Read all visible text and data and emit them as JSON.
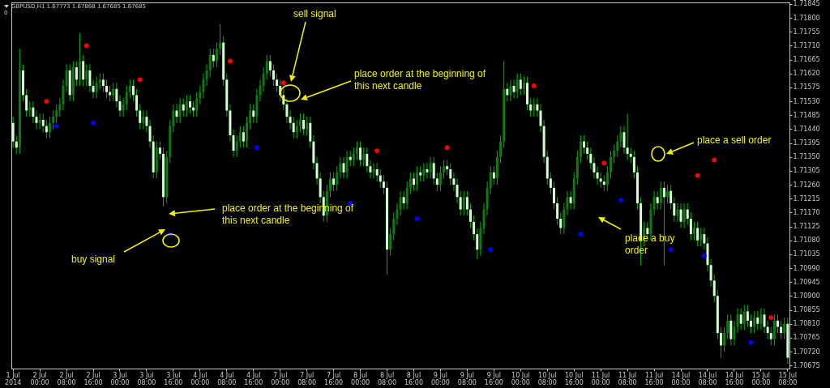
{
  "chart_data": {
    "type": "candlestick",
    "title": "GBPUSD,H1  1.67773 1.67868 1.67685 1.67685",
    "subtitle": "0",
    "categories": [
      "1 Jul 2014",
      null,
      null,
      null,
      null,
      null,
      null,
      null,
      "2 Jul 00:00",
      null,
      null,
      null,
      null,
      null,
      null,
      null,
      "2 Jul 08:00",
      null,
      null,
      null,
      null,
      null,
      null,
      null,
      "2 Jul 16:00",
      null,
      null,
      null,
      null,
      null,
      null,
      null,
      "3 Jul 00:00",
      null,
      null,
      null,
      null,
      null,
      null,
      null,
      "3 Jul 08:00",
      null,
      null,
      null,
      null,
      null,
      null,
      null,
      "3 Jul 16:00",
      null,
      null,
      null,
      null,
      null,
      null,
      null,
      "4 Jul 00:00",
      null,
      null,
      null,
      null,
      null,
      null,
      null,
      "4 Jul 08:00",
      null,
      null,
      null,
      null,
      null,
      null,
      null,
      "4 Jul 16:00",
      null,
      null,
      null,
      null,
      null,
      null,
      null,
      "7 Jul 00:00",
      null,
      null,
      null,
      null,
      null,
      null,
      null,
      "7 Jul 08:00",
      null,
      null,
      null,
      null,
      null,
      null,
      null,
      "7 Jul 16:00",
      null,
      null,
      null,
      null,
      null,
      null,
      null,
      "8 Jul 00:00",
      null,
      null,
      null,
      null,
      null,
      null,
      null,
      "8 Jul 08:00",
      null,
      null,
      null,
      null,
      null,
      null,
      null,
      "8 Jul 16:00",
      null,
      null,
      null,
      null,
      null,
      null,
      null,
      "9 Jul 00:00",
      null,
      null,
      null,
      null,
      null,
      null,
      null,
      "9 Jul 08:00",
      null,
      null,
      null,
      null,
      null,
      null,
      null,
      "9 Jul 16:00",
      null,
      null,
      null,
      null,
      null,
      null,
      null,
      "10 Jul 00:00",
      null,
      null,
      null,
      null,
      null,
      null,
      null,
      "10 Jul 08:00",
      null,
      null,
      null,
      null,
      null,
      null,
      null,
      "10 Jul 16:00",
      null,
      null,
      null,
      null,
      null,
      null,
      null,
      "11 Jul 00:00",
      null,
      null,
      null,
      null,
      null,
      null,
      null,
      "11 Jul 08:00",
      null,
      null,
      null,
      null,
      null,
      null,
      null,
      "11 Jul 16:00",
      null,
      null,
      null,
      null,
      null,
      null,
      null,
      "14 Jul 00:00",
      null,
      null,
      null,
      null,
      null,
      null,
      null,
      "14 Jul 08:00",
      null,
      null,
      null,
      null,
      null,
      null,
      null,
      "14 Jul 16:00",
      null,
      null,
      null,
      null,
      null,
      null,
      null,
      "15 Jul 00:00",
      null,
      null,
      null,
      null,
      null,
      null,
      null,
      "15 Jul 08:00"
    ],
    "ohlc": [
      [
        1.7146,
        1.7148,
        1.7138,
        1.714
      ],
      [
        1.714,
        1.7142,
        1.7136,
        1.7138
      ],
      [
        1.7138,
        1.717,
        1.7136,
        1.7163
      ],
      [
        1.7163,
        1.7165,
        1.7153,
        1.7155
      ],
      [
        1.7155,
        1.7157,
        1.7148,
        1.715
      ],
      [
        1.715,
        1.7153,
        1.7148,
        1.7151
      ],
      [
        1.7151,
        1.7153,
        1.7146,
        1.7148
      ],
      [
        1.7148,
        1.715,
        1.7144,
        1.7146
      ],
      [
        1.7146,
        1.7149,
        1.7144,
        1.7147
      ],
      [
        1.7147,
        1.7149,
        1.7143,
        1.7145
      ],
      [
        1.7145,
        1.7147,
        1.7141,
        1.7143
      ],
      [
        1.7143,
        1.7148,
        1.7141,
        1.7146
      ],
      [
        1.7146,
        1.715,
        1.7144,
        1.7148
      ],
      [
        1.7148,
        1.7152,
        1.7146,
        1.715
      ],
      [
        1.715,
        1.7154,
        1.7148,
        1.7152
      ],
      [
        1.7152,
        1.716,
        1.715,
        1.7158
      ],
      [
        1.7158,
        1.7165,
        1.7156,
        1.7163
      ],
      [
        1.7163,
        1.7165,
        1.7153,
        1.7155
      ],
      [
        1.7155,
        1.7166,
        1.7153,
        1.7164
      ],
      [
        1.7164,
        1.7166,
        1.7158,
        1.716
      ],
      [
        1.716,
        1.7175,
        1.7158,
        1.7166
      ],
      [
        1.7166,
        1.7168,
        1.7158,
        1.716
      ],
      [
        1.716,
        1.7165,
        1.7158,
        1.7163
      ],
      [
        1.7163,
        1.7165,
        1.7156,
        1.7158
      ],
      [
        1.7158,
        1.716,
        1.7154,
        1.7156
      ],
      [
        1.7156,
        1.7161,
        1.7154,
        1.7159
      ],
      [
        1.7159,
        1.7162,
        1.7157,
        1.716
      ],
      [
        1.716,
        1.7162,
        1.7156,
        1.7158
      ],
      [
        1.7158,
        1.716,
        1.7154,
        1.7156
      ],
      [
        1.7156,
        1.7158,
        1.7153,
        1.7155
      ],
      [
        1.7155,
        1.7159,
        1.7153,
        1.7157
      ],
      [
        1.7157,
        1.7159,
        1.7151,
        1.7153
      ],
      [
        1.7153,
        1.7155,
        1.7148,
        1.715
      ],
      [
        1.715,
        1.7154,
        1.7148,
        1.7152
      ],
      [
        1.7152,
        1.7158,
        1.715,
        1.7156
      ],
      [
        1.7156,
        1.716,
        1.7154,
        1.7158
      ],
      [
        1.7158,
        1.716,
        1.7153,
        1.7155
      ],
      [
        1.7155,
        1.7157,
        1.7148,
        1.715
      ],
      [
        1.715,
        1.7152,
        1.7144,
        1.7146
      ],
      [
        1.7146,
        1.715,
        1.7144,
        1.7148
      ],
      [
        1.7148,
        1.715,
        1.7143,
        1.7145
      ],
      [
        1.7145,
        1.7147,
        1.7138,
        1.714
      ],
      [
        1.714,
        1.7142,
        1.7128,
        1.713
      ],
      [
        1.713,
        1.714,
        1.7128,
        1.7138
      ],
      [
        1.7138,
        1.714,
        1.7134,
        1.7136
      ],
      [
        1.7136,
        1.7138,
        1.7119,
        1.7122
      ],
      [
        1.7122,
        1.7137,
        1.712,
        1.7135
      ],
      [
        1.7135,
        1.7147,
        1.7133,
        1.7145
      ],
      [
        1.7145,
        1.7152,
        1.7143,
        1.715
      ],
      [
        1.715,
        1.7152,
        1.7146,
        1.7148
      ],
      [
        1.7148,
        1.7154,
        1.7146,
        1.7152
      ],
      [
        1.7152,
        1.7154,
        1.7148,
        1.715
      ],
      [
        1.715,
        1.7155,
        1.7148,
        1.7153
      ],
      [
        1.7153,
        1.7155,
        1.7149,
        1.7151
      ],
      [
        1.7151,
        1.7153,
        1.7148,
        1.715
      ],
      [
        1.715,
        1.7156,
        1.7148,
        1.7154
      ],
      [
        1.7154,
        1.7158,
        1.7152,
        1.7156
      ],
      [
        1.7156,
        1.7162,
        1.7154,
        1.716
      ],
      [
        1.716,
        1.7165,
        1.7158,
        1.7163
      ],
      [
        1.7163,
        1.717,
        1.7161,
        1.7168
      ],
      [
        1.7168,
        1.717,
        1.7164,
        1.7166
      ],
      [
        1.7166,
        1.7172,
        1.7164,
        1.717
      ],
      [
        1.717,
        1.7178,
        1.7168,
        1.7172
      ],
      [
        1.7172,
        1.7174,
        1.7158,
        1.716
      ],
      [
        1.716,
        1.7162,
        1.7148,
        1.715
      ],
      [
        1.715,
        1.7152,
        1.714,
        1.7142
      ],
      [
        1.7142,
        1.7144,
        1.7135,
        1.7137
      ],
      [
        1.7137,
        1.7142,
        1.7135,
        1.714
      ],
      [
        1.714,
        1.7145,
        1.7138,
        1.7143
      ],
      [
        1.7143,
        1.7145,
        1.7138,
        1.714
      ],
      [
        1.714,
        1.7148,
        1.7138,
        1.7146
      ],
      [
        1.7146,
        1.7152,
        1.7144,
        1.715
      ],
      [
        1.715,
        1.7152,
        1.7146,
        1.7148
      ],
      [
        1.7148,
        1.7157,
        1.7146,
        1.7155
      ],
      [
        1.7155,
        1.716,
        1.7153,
        1.7158
      ],
      [
        1.7158,
        1.7164,
        1.7156,
        1.7162
      ],
      [
        1.7162,
        1.7168,
        1.716,
        1.7166
      ],
      [
        1.7166,
        1.7168,
        1.7161,
        1.7163
      ],
      [
        1.7163,
        1.7165,
        1.7158,
        1.716
      ],
      [
        1.716,
        1.7162,
        1.7156,
        1.7158
      ],
      [
        1.7158,
        1.716,
        1.7153,
        1.7155
      ],
      [
        1.7155,
        1.7157,
        1.715,
        1.7152
      ],
      [
        1.7152,
        1.7154,
        1.7146,
        1.7148
      ],
      [
        1.7148,
        1.715,
        1.7144,
        1.7146
      ],
      [
        1.7146,
        1.7148,
        1.7141,
        1.7143
      ],
      [
        1.7143,
        1.7147,
        1.7141,
        1.7145
      ],
      [
        1.7145,
        1.7149,
        1.7143,
        1.7147
      ],
      [
        1.7147,
        1.7149,
        1.7142,
        1.7144
      ],
      [
        1.7144,
        1.7148,
        1.7142,
        1.7146
      ],
      [
        1.7146,
        1.7148,
        1.7138,
        1.714
      ],
      [
        1.714,
        1.7142,
        1.7131,
        1.7133
      ],
      [
        1.7133,
        1.7135,
        1.7126,
        1.7128
      ],
      [
        1.7128,
        1.713,
        1.712,
        1.7122
      ],
      [
        1.7122,
        1.7124,
        1.7114,
        1.7116
      ],
      [
        1.7116,
        1.7126,
        1.7114,
        1.7124
      ],
      [
        1.7124,
        1.713,
        1.7122,
        1.7128
      ],
      [
        1.7128,
        1.713,
        1.7124,
        1.7126
      ],
      [
        1.7126,
        1.7132,
        1.7124,
        1.713
      ],
      [
        1.713,
        1.7135,
        1.7128,
        1.7133
      ],
      [
        1.7133,
        1.7135,
        1.7128,
        1.713
      ],
      [
        1.713,
        1.7137,
        1.7128,
        1.7135
      ],
      [
        1.7135,
        1.7137,
        1.7132,
        1.7134
      ],
      [
        1.7134,
        1.7138,
        1.7132,
        1.7136
      ],
      [
        1.7136,
        1.714,
        1.7134,
        1.7138
      ],
      [
        1.7138,
        1.714,
        1.7132,
        1.7134
      ],
      [
        1.7134,
        1.7138,
        1.7132,
        1.7136
      ],
      [
        1.7136,
        1.7138,
        1.713,
        1.7132
      ],
      [
        1.7132,
        1.7134,
        1.7128,
        1.713
      ],
      [
        1.713,
        1.7133,
        1.7128,
        1.7131
      ],
      [
        1.7131,
        1.7133,
        1.7127,
        1.7129
      ],
      [
        1.7129,
        1.7131,
        1.7125,
        1.7127
      ],
      [
        1.7127,
        1.7129,
        1.7123,
        1.7125
      ],
      [
        1.7125,
        1.7127,
        1.7097,
        1.7105
      ],
      [
        1.7105,
        1.7112,
        1.7103,
        1.711
      ],
      [
        1.711,
        1.7117,
        1.7108,
        1.7115
      ],
      [
        1.7115,
        1.712,
        1.7113,
        1.7118
      ],
      [
        1.7118,
        1.7124,
        1.7116,
        1.7122
      ],
      [
        1.7122,
        1.7124,
        1.7118,
        1.712
      ],
      [
        1.712,
        1.7127,
        1.7118,
        1.7125
      ],
      [
        1.7125,
        1.713,
        1.7123,
        1.7128
      ],
      [
        1.7128,
        1.713,
        1.7124,
        1.7126
      ],
      [
        1.7126,
        1.7132,
        1.7124,
        1.713
      ],
      [
        1.713,
        1.7132,
        1.7127,
        1.7129
      ],
      [
        1.7129,
        1.7133,
        1.7127,
        1.7131
      ],
      [
        1.7131,
        1.7133,
        1.7128,
        1.713
      ],
      [
        1.713,
        1.7135,
        1.7128,
        1.7133
      ],
      [
        1.7133,
        1.7135,
        1.7126,
        1.7128
      ],
      [
        1.7128,
        1.713,
        1.7124,
        1.7126
      ],
      [
        1.7126,
        1.7132,
        1.7124,
        1.713
      ],
      [
        1.713,
        1.7134,
        1.7128,
        1.7132
      ],
      [
        1.7132,
        1.7134,
        1.7129,
        1.7131
      ],
      [
        1.7131,
        1.7133,
        1.7126,
        1.7128
      ],
      [
        1.7128,
        1.713,
        1.7124,
        1.7126
      ],
      [
        1.7126,
        1.7128,
        1.712,
        1.7122
      ],
      [
        1.7122,
        1.7124,
        1.7116,
        1.7118
      ],
      [
        1.7118,
        1.7124,
        1.7116,
        1.7122
      ],
      [
        1.7122,
        1.7124,
        1.7116,
        1.7118
      ],
      [
        1.7118,
        1.712,
        1.7112,
        1.7114
      ],
      [
        1.7114,
        1.7116,
        1.7108,
        1.711
      ],
      [
        1.711,
        1.7112,
        1.7102,
        1.7105
      ],
      [
        1.7105,
        1.7114,
        1.7103,
        1.7112
      ],
      [
        1.7112,
        1.712,
        1.711,
        1.7118
      ],
      [
        1.7118,
        1.7127,
        1.7116,
        1.7125
      ],
      [
        1.7125,
        1.7132,
        1.7123,
        1.713
      ],
      [
        1.713,
        1.7132,
        1.7126,
        1.7128
      ],
      [
        1.7128,
        1.7137,
        1.7126,
        1.7135
      ],
      [
        1.7135,
        1.7142,
        1.7133,
        1.714
      ],
      [
        1.714,
        1.7166,
        1.7138,
        1.7157
      ],
      [
        1.7157,
        1.7159,
        1.7153,
        1.7155
      ],
      [
        1.7155,
        1.716,
        1.7153,
        1.7158
      ],
      [
        1.7158,
        1.716,
        1.7154,
        1.7156
      ],
      [
        1.7156,
        1.7162,
        1.7154,
        1.716
      ],
      [
        1.716,
        1.7162,
        1.7155,
        1.7157
      ],
      [
        1.7157,
        1.7161,
        1.7155,
        1.7159
      ],
      [
        1.7159,
        1.7161,
        1.715,
        1.7152
      ],
      [
        1.7152,
        1.7154,
        1.7148,
        1.715
      ],
      [
        1.715,
        1.7154,
        1.7148,
        1.7152
      ],
      [
        1.7152,
        1.7154,
        1.7148,
        1.715
      ],
      [
        1.715,
        1.7152,
        1.7143,
        1.7145
      ],
      [
        1.7145,
        1.7147,
        1.7133,
        1.7135
      ],
      [
        1.7135,
        1.7137,
        1.7126,
        1.7128
      ],
      [
        1.7128,
        1.713,
        1.7123,
        1.7125
      ],
      [
        1.7125,
        1.7127,
        1.7118,
        1.712
      ],
      [
        1.712,
        1.7122,
        1.7113,
        1.7115
      ],
      [
        1.7115,
        1.7117,
        1.711,
        1.7112
      ],
      [
        1.7112,
        1.712,
        1.711,
        1.7118
      ],
      [
        1.7118,
        1.7124,
        1.7116,
        1.7122
      ],
      [
        1.7122,
        1.7124,
        1.7118,
        1.712
      ],
      [
        1.712,
        1.713,
        1.7118,
        1.7128
      ],
      [
        1.7128,
        1.7137,
        1.7126,
        1.7135
      ],
      [
        1.7135,
        1.7142,
        1.7133,
        1.714
      ],
      [
        1.714,
        1.7142,
        1.7136,
        1.7138
      ],
      [
        1.7138,
        1.714,
        1.7134,
        1.7136
      ],
      [
        1.7136,
        1.7138,
        1.7131,
        1.7133
      ],
      [
        1.7133,
        1.7135,
        1.7128,
        1.713
      ],
      [
        1.713,
        1.7132,
        1.7126,
        1.7128
      ],
      [
        1.7128,
        1.713,
        1.7125,
        1.7127
      ],
      [
        1.7127,
        1.7129,
        1.7124,
        1.7126
      ],
      [
        1.7126,
        1.7132,
        1.7124,
        1.713
      ],
      [
        1.713,
        1.7137,
        1.7128,
        1.7135
      ],
      [
        1.7135,
        1.7139,
        1.7133,
        1.7137
      ],
      [
        1.7137,
        1.7142,
        1.7135,
        1.714
      ],
      [
        1.714,
        1.7145,
        1.7138,
        1.7143
      ],
      [
        1.7143,
        1.7145,
        1.7136,
        1.7138
      ],
      [
        1.7138,
        1.7149,
        1.7134,
        1.7136
      ],
      [
        1.7136,
        1.7138,
        1.7133,
        1.7135
      ],
      [
        1.7135,
        1.7137,
        1.7128,
        1.713
      ],
      [
        1.713,
        1.7132,
        1.7118,
        1.712
      ],
      [
        1.712,
        1.7122,
        1.71,
        1.7108
      ],
      [
        1.7108,
        1.7114,
        1.7106,
        1.7112
      ],
      [
        1.7112,
        1.7114,
        1.7108,
        1.711
      ],
      [
        1.711,
        1.712,
        1.7108,
        1.7118
      ],
      [
        1.7118,
        1.7124,
        1.7116,
        1.7122
      ],
      [
        1.7122,
        1.7124,
        1.7118,
        1.712
      ],
      [
        1.712,
        1.7127,
        1.7118,
        1.7125
      ],
      [
        1.7125,
        1.7127,
        1.71,
        1.7122
      ],
      [
        1.7122,
        1.7126,
        1.712,
        1.7124
      ],
      [
        1.7124,
        1.7126,
        1.7118,
        1.712
      ],
      [
        1.712,
        1.7122,
        1.7114,
        1.7116
      ],
      [
        1.7116,
        1.712,
        1.7114,
        1.7118
      ],
      [
        1.7118,
        1.712,
        1.7112,
        1.7114
      ],
      [
        1.7114,
        1.712,
        1.7112,
        1.7118
      ],
      [
        1.7118,
        1.712,
        1.7113,
        1.7115
      ],
      [
        1.7115,
        1.7117,
        1.7108,
        1.711
      ],
      [
        1.711,
        1.7114,
        1.7108,
        1.7112
      ],
      [
        1.7112,
        1.7114,
        1.7106,
        1.7108
      ],
      [
        1.7108,
        1.7112,
        1.7106,
        1.711
      ],
      [
        1.711,
        1.7112,
        1.7105,
        1.7107
      ],
      [
        1.7107,
        1.7109,
        1.7098,
        1.71
      ],
      [
        1.71,
        1.7102,
        1.7093,
        1.7095
      ],
      [
        1.7095,
        1.7097,
        1.7088,
        1.709
      ],
      [
        1.709,
        1.7092,
        1.7076,
        1.7078
      ],
      [
        1.7078,
        1.708,
        1.707,
        1.7074
      ],
      [
        1.7074,
        1.708,
        1.7072,
        1.7078
      ],
      [
        1.7078,
        1.7084,
        1.7076,
        1.7082
      ],
      [
        1.7082,
        1.7084,
        1.7074,
        1.7076
      ],
      [
        1.7076,
        1.7082,
        1.7074,
        1.708
      ],
      [
        1.708,
        1.7086,
        1.7078,
        1.7084
      ],
      [
        1.7084,
        1.7086,
        1.7079,
        1.7081
      ],
      [
        1.7081,
        1.7087,
        1.7079,
        1.7085
      ],
      [
        1.7085,
        1.7087,
        1.708,
        1.7082
      ],
      [
        1.7082,
        1.7084,
        1.7078,
        1.708
      ],
      [
        1.708,
        1.7085,
        1.7078,
        1.7083
      ],
      [
        1.7083,
        1.7085,
        1.7079,
        1.7081
      ],
      [
        1.7081,
        1.7086,
        1.7079,
        1.7084
      ],
      [
        1.7084,
        1.7086,
        1.7078,
        1.708
      ],
      [
        1.708,
        1.7082,
        1.7076,
        1.7078
      ],
      [
        1.7078,
        1.708,
        1.7074,
        1.7076
      ],
      [
        1.7076,
        1.7084,
        1.7074,
        1.7082
      ],
      [
        1.7082,
        1.7084,
        1.7078,
        1.708
      ],
      [
        1.708,
        1.7082,
        1.7076,
        1.7078
      ],
      [
        1.7078,
        1.7083,
        1.7076,
        1.7081
      ],
      [
        1.7081,
        1.7083,
        1.7068,
        1.707
      ]
    ],
    "series": [
      {
        "type": "scatter",
        "color": "#ff0000",
        "marker": "circle",
        "values": [
          null,
          null,
          null,
          null,
          null,
          null,
          null,
          null,
          null,
          null,
          1.7153,
          null,
          null,
          null,
          null,
          null,
          null,
          null,
          null,
          null,
          null,
          null,
          1.7171,
          null,
          null,
          null,
          null,
          null,
          null,
          null,
          null,
          null,
          null,
          null,
          null,
          null,
          null,
          null,
          1.716,
          null,
          null,
          null,
          null,
          null,
          null,
          null,
          null,
          null,
          null,
          null,
          null,
          null,
          null,
          null,
          null,
          null,
          null,
          null,
          null,
          null,
          null,
          null,
          null,
          null,
          null,
          1.7166,
          null,
          null,
          null,
          null,
          null,
          null,
          null,
          null,
          null,
          null,
          null,
          null,
          null,
          null,
          null,
          1.7159,
          null,
          null,
          null,
          null,
          null,
          null,
          null,
          null,
          null,
          null,
          null,
          null,
          null,
          null,
          null,
          null,
          null,
          null,
          null,
          null,
          null,
          null,
          null,
          null,
          null,
          null,
          null,
          1.7137,
          null,
          null,
          null,
          null,
          null,
          null,
          null,
          null,
          null,
          null,
          null,
          null,
          null,
          null,
          null,
          null,
          null,
          null,
          null,
          null,
          1.7138,
          null,
          null,
          null,
          null,
          null,
          null,
          null,
          null,
          null,
          null,
          null,
          null,
          null,
          null,
          null,
          null,
          null,
          null,
          null,
          null,
          null,
          null,
          null,
          null,
          null,
          1.7158,
          null,
          null,
          null,
          null,
          null,
          null,
          null,
          null,
          null,
          null,
          null,
          null,
          null,
          null,
          null,
          null,
          null,
          null,
          null,
          null,
          1.7133,
          null,
          null,
          null,
          null,
          null,
          null,
          null,
          null,
          null,
          null,
          null,
          null,
          null,
          null,
          null,
          null,
          null,
          null,
          null,
          null,
          null,
          null,
          null,
          null,
          null,
          null,
          null,
          1.7129,
          null,
          null,
          null,
          null,
          1.7134,
          null,
          null,
          null,
          null,
          null,
          null,
          null,
          null,
          null,
          null,
          null,
          null,
          null,
          null,
          null,
          null,
          1.7083,
          null,
          null,
          null,
          null,
          null
        ]
      },
      {
        "type": "scatter",
        "color": "#0000ff",
        "marker": "circle",
        "values": [
          null,
          null,
          null,
          null,
          null,
          null,
          null,
          null,
          null,
          null,
          null,
          null,
          null,
          1.7145,
          null,
          null,
          null,
          null,
          null,
          null,
          null,
          null,
          null,
          null,
          1.7146,
          null,
          null,
          null,
          null,
          null,
          null,
          null,
          null,
          null,
          null,
          null,
          null,
          null,
          null,
          null,
          null,
          null,
          null,
          null,
          null,
          null,
          null,
          1.711,
          null,
          null,
          null,
          null,
          null,
          null,
          null,
          null,
          null,
          null,
          null,
          null,
          null,
          null,
          null,
          null,
          null,
          null,
          null,
          null,
          null,
          null,
          null,
          null,
          null,
          1.7138,
          null,
          null,
          null,
          null,
          null,
          null,
          null,
          null,
          null,
          null,
          null,
          null,
          null,
          null,
          null,
          null,
          null,
          null,
          null,
          null,
          null,
          null,
          null,
          null,
          null,
          null,
          null,
          1.712,
          null,
          null,
          null,
          null,
          null,
          null,
          null,
          null,
          null,
          null,
          null,
          null,
          null,
          null,
          null,
          null,
          null,
          null,
          null,
          1.7115,
          null,
          null,
          null,
          null,
          null,
          null,
          null,
          null,
          null,
          null,
          null,
          null,
          null,
          null,
          null,
          null,
          null,
          null,
          null,
          null,
          null,
          1.7105,
          null,
          null,
          null,
          null,
          null,
          null,
          null,
          null,
          null,
          null,
          null,
          null,
          null,
          null,
          null,
          null,
          null,
          null,
          null,
          null,
          null,
          null,
          null,
          null,
          null,
          null,
          1.711,
          null,
          null,
          null,
          null,
          null,
          null,
          null,
          null,
          null,
          null,
          null,
          1.7121,
          null,
          null,
          null,
          null,
          null,
          null,
          null,
          null,
          null,
          null,
          null,
          null,
          null,
          null,
          1.7105,
          null,
          null,
          null,
          null,
          null,
          null,
          null,
          null,
          null,
          1.7103,
          null,
          null,
          null,
          null,
          null,
          null,
          null,
          null,
          null,
          null,
          null,
          null,
          null,
          1.7075,
          null,
          null,
          null,
          null,
          null,
          null,
          null,
          null,
          null,
          null,
          null
        ]
      }
    ],
    "ylim": [
      1.70665,
      1.7185
    ],
    "yticks": [
      1.70675,
      {
        "value": 1.7072,
        "label": "1.70720"
      },
      1.70765,
      {
        "value": 1.7081,
        "label": "1.70810"
      },
      1.70855,
      {
        "value": 1.709,
        "label": "1.70900"
      },
      1.70945,
      {
        "value": 1.7099,
        "label": "1.70990"
      },
      1.71035,
      {
        "value": 1.7108,
        "label": "1.71080"
      },
      1.71125,
      {
        "value": 1.7117,
        "label": "1.71170"
      },
      1.71215,
      {
        "value": 1.7126,
        "label": "1.71260"
      },
      1.71305,
      {
        "value": 1.7135,
        "label": "1.71350"
      },
      1.71395,
      {
        "value": 1.7144,
        "label": "1.71440"
      },
      1.71485,
      {
        "value": 1.7153,
        "label": "1.71530"
      },
      1.71575,
      {
        "value": 1.7162,
        "label": "1.71620"
      },
      1.71665,
      {
        "value": 1.7171,
        "label": "1.71710"
      },
      1.71755,
      {
        "value": 1.718,
        "label": "1.71800"
      },
      1.71845
    ],
    "annotations": [
      "sell signal",
      "place order at the beginning of this next candle",
      "place a sell order",
      "place order at the beginning of this next candle",
      "buy signal",
      "place a buy order"
    ]
  }
}
